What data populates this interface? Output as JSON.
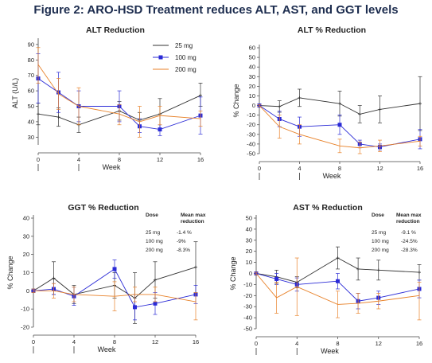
{
  "figure_title": "Figure 2: ARO-HSD Treatment reduces ALT, AST, and GGT levels",
  "colors": {
    "25 mg": "#333333",
    "100 mg": "#2b2bd6",
    "200 mg": "#e8822a"
  },
  "chart_data": [
    {
      "type": "line",
      "title": "ALT Reduction",
      "xlabel": "Week",
      "ylabel": "ALT (U/L)",
      "x": [
        0,
        2,
        4,
        8,
        10,
        12,
        16
      ],
      "x_ticks": [
        0,
        4,
        8,
        12,
        16
      ],
      "y_ticks": [
        30,
        40,
        50,
        60,
        70,
        80,
        90
      ],
      "ylim": [
        25,
        92
      ],
      "legend": "top-right",
      "series": [
        {
          "name": "25 mg",
          "marker": "plus",
          "points": [
            [
              0,
              45,
              52,
              38
            ],
            [
              2,
              43,
              49,
              37
            ],
            [
              4,
              38,
              43,
              33
            ],
            [
              8,
              47,
              53,
              41
            ],
            [
              10,
              41,
              46,
              37
            ],
            [
              12,
              45,
              55,
              35
            ],
            [
              16,
              57,
              65,
              50
            ]
          ]
        },
        {
          "name": "100 mg",
          "marker": "square",
          "points": [
            [
              0,
              68,
              84,
              52
            ],
            [
              2,
              59,
              72,
              46
            ],
            [
              4,
              50,
              60,
              40
            ],
            [
              8,
              50,
              60,
              40
            ],
            [
              10,
              37,
              42,
              33
            ],
            [
              12,
              35,
              38,
              31
            ],
            [
              16,
              44,
              56,
              32
            ]
          ]
        },
        {
          "name": "200 mg",
          "marker": "none",
          "points": [
            [
              0,
              77,
              88,
              65
            ],
            [
              2,
              58,
              68,
              48
            ],
            [
              4,
              50,
              62,
              38
            ],
            [
              8,
              45,
              51,
              38
            ],
            [
              10,
              40,
              50,
              30
            ],
            [
              12,
              44,
              50,
              38
            ],
            [
              16,
              42,
              47,
              37
            ]
          ]
        }
      ],
      "dose_markers": [
        0,
        4
      ]
    },
    {
      "type": "line",
      "title": "ALT % Reduction",
      "xlabel": "Week",
      "ylabel": "% Change",
      "x": [
        0,
        2,
        4,
        8,
        10,
        12,
        16
      ],
      "x_ticks": [
        0,
        4,
        8,
        12,
        16
      ],
      "y_ticks": [
        -50,
        -40,
        -30,
        -20,
        -10,
        0,
        10,
        20,
        30,
        40,
        50,
        60
      ],
      "ylim": [
        -50,
        60
      ],
      "series": [
        {
          "name": "25 mg",
          "points": [
            [
              0,
              0,
              1,
              -1
            ],
            [
              2,
              -1,
              5,
              -7
            ],
            [
              4,
              8,
              17,
              -1
            ],
            [
              8,
              2,
              15,
              -11
            ],
            [
              10,
              -9,
              0,
              -18
            ],
            [
              12,
              -4,
              10,
              -18
            ],
            [
              16,
              2,
              30,
              -26
            ]
          ]
        },
        {
          "name": "100 mg",
          "points": [
            [
              0,
              0,
              1,
              -1
            ],
            [
              2,
              -14,
              -6,
              -22
            ],
            [
              4,
              -22,
              -12,
              -32
            ],
            [
              8,
              -20,
              -10,
              -30
            ],
            [
              10,
              -40,
              -36,
              -44
            ],
            [
              12,
              -43,
              -40,
              -46
            ],
            [
              16,
              -35,
              -25,
              -45
            ]
          ]
        },
        {
          "name": "200 mg",
          "points": [
            [
              0,
              0,
              1,
              -1
            ],
            [
              2,
              -22,
              -10,
              -34
            ],
            [
              4,
              -30,
              -20,
              -40
            ],
            [
              8,
              -42,
              -35,
              -49
            ],
            [
              10,
              -44,
              -38,
              -50
            ],
            [
              12,
              -42,
              -36,
              -48
            ],
            [
              16,
              -37,
              -32,
              -42
            ]
          ]
        }
      ],
      "dose_markers": [
        0,
        4
      ]
    },
    {
      "type": "line",
      "title": "GGT % Reduction",
      "xlabel": "Week",
      "ylabel": "% Change",
      "x": [
        0,
        2,
        4,
        8,
        10,
        12,
        16
      ],
      "x_ticks": [
        0,
        4,
        8,
        12,
        16
      ],
      "y_ticks": [
        -20,
        -10,
        0,
        10,
        20,
        30,
        40
      ],
      "ylim": [
        -20,
        40
      ],
      "series": [
        {
          "name": "25 mg",
          "points": [
            [
              0,
              0,
              1,
              -1
            ],
            [
              2,
              7,
              16,
              -2
            ],
            [
              4,
              -2,
              3,
              -7
            ],
            [
              8,
              3,
              10,
              -4
            ],
            [
              10,
              -4,
              10,
              -18
            ],
            [
              12,
              6,
              16,
              -4
            ],
            [
              16,
              13,
              27,
              -1
            ]
          ]
        },
        {
          "name": "100 mg",
          "points": [
            [
              0,
              0,
              1,
              -1
            ],
            [
              2,
              1,
              4,
              -2
            ],
            [
              4,
              -3,
              2,
              -8
            ],
            [
              8,
              12,
              17,
              7
            ],
            [
              10,
              -9,
              -2,
              -16
            ],
            [
              12,
              -7,
              -1,
              -13
            ],
            [
              16,
              -2,
              3,
              -7
            ]
          ]
        },
        {
          "name": "200 mg",
          "points": [
            [
              0,
              0,
              1,
              -1
            ],
            [
              2,
              0,
              4,
              -4
            ],
            [
              4,
              -2,
              2,
              -6
            ],
            [
              8,
              -3,
              5,
              -11
            ],
            [
              10,
              -2,
              2,
              -6
            ],
            [
              12,
              -2,
              2,
              -6
            ],
            [
              16,
              -6,
              -1,
              -16
            ]
          ]
        }
      ],
      "table": {
        "headers": [
          "Dose",
          "Mean max reduction"
        ],
        "rows": [
          [
            "25 mg",
            "-1.4 %"
          ],
          [
            "100 mg",
            "-9%"
          ],
          [
            "200 mg",
            "-8.3%"
          ]
        ]
      },
      "dose_markers": [
        0,
        4
      ]
    },
    {
      "type": "line",
      "title": "AST % Reduction",
      "xlabel": "Week",
      "ylabel": "% Change",
      "x": [
        0,
        2,
        4,
        8,
        10,
        12,
        16
      ],
      "x_ticks": [
        0,
        4,
        8,
        12,
        16
      ],
      "y_ticks": [
        -50,
        -40,
        -30,
        -20,
        -10,
        0,
        10,
        20,
        30,
        40,
        50
      ],
      "ylim": [
        -50,
        50
      ],
      "series": [
        {
          "name": "25 mg",
          "points": [
            [
              0,
              0,
              1,
              -1
            ],
            [
              2,
              -3,
              3,
              -9
            ],
            [
              4,
              -8,
              -3,
              -13
            ],
            [
              8,
              14,
              24,
              4
            ],
            [
              10,
              4,
              14,
              -6
            ],
            [
              12,
              3,
              12,
              -6
            ],
            [
              16,
              1,
              8,
              -6
            ]
          ]
        },
        {
          "name": "100 mg",
          "points": [
            [
              0,
              0,
              1,
              -1
            ],
            [
              2,
              -5,
              0,
              -10
            ],
            [
              4,
              -10,
              -4,
              -16
            ],
            [
              8,
              -7,
              0,
              -14
            ],
            [
              10,
              -25,
              -18,
              -32
            ],
            [
              12,
              -22,
              -16,
              -28
            ],
            [
              16,
              -14,
              -6,
              -22
            ]
          ]
        },
        {
          "name": "200 mg",
          "points": [
            [
              0,
              0,
              1,
              -1
            ],
            [
              2,
              -22,
              -8,
              -36
            ],
            [
              4,
              -12,
              14,
              -38
            ],
            [
              8,
              -28,
              -16,
              -40
            ],
            [
              10,
              -27,
              -18,
              -36
            ],
            [
              12,
              -25,
              -18,
              -32
            ],
            [
              16,
              -20,
              -8,
              -42
            ]
          ]
        }
      ],
      "table": {
        "headers": [
          "Dose",
          "Mean max reduction"
        ],
        "rows": [
          [
            "25 mg",
            "-9.1 %"
          ],
          [
            "100 mg",
            "-24.5%"
          ],
          [
            "200 mg",
            "-28.3%"
          ]
        ]
      },
      "dose_markers": [
        0,
        4
      ]
    }
  ]
}
